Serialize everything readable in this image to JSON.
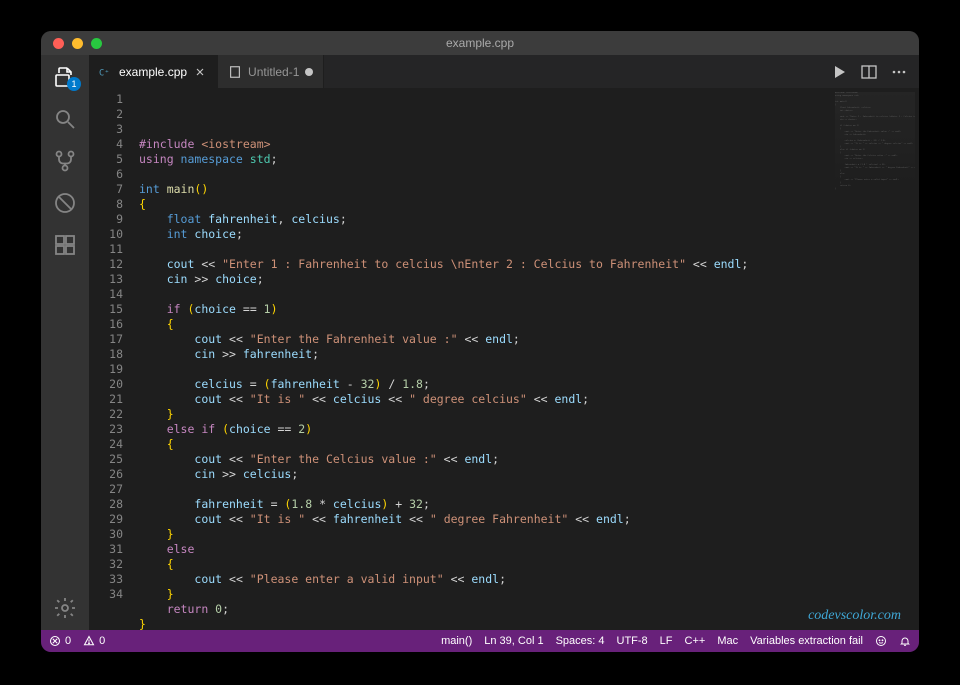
{
  "window": {
    "title": "example.cpp"
  },
  "traffic": {
    "close": "#ff5f57",
    "min": "#febc2e",
    "max": "#28c840"
  },
  "activity": {
    "badge": "1",
    "items": [
      "explorer",
      "search",
      "scm",
      "debug",
      "extensions"
    ]
  },
  "tabs": [
    {
      "label": "example.cpp",
      "lang": "cpp",
      "active": true,
      "dirty": false
    },
    {
      "label": "Untitled-1",
      "lang": "text",
      "active": false,
      "dirty": true
    }
  ],
  "editor_actions": [
    "run",
    "split",
    "more"
  ],
  "statusbar": {
    "errors": "0",
    "warnings": "0",
    "func": "main()",
    "cursor": "Ln 39, Col 1",
    "spaces": "Spaces: 4",
    "encoding": "UTF-8",
    "eol": "LF",
    "lang": "C++",
    "os": "Mac",
    "misc": "Variables extraction fail"
  },
  "watermark": "codevscolor.com",
  "syntax_colors": {
    "keyword": "#c586c0",
    "type": "#569cd6",
    "function": "#dcdcaa",
    "string": "#ce9178",
    "number": "#b5cea8",
    "bracket": "#ffd602",
    "namespace": "#4ec9b0",
    "variable": "#9cdcfe",
    "default": "#d4d4d4",
    "gutter": "#858585",
    "background": "#1e1e1e"
  },
  "code": {
    "line_count": 34,
    "lines": [
      [
        [
          "kw",
          "#include "
        ],
        [
          "str",
          "<iostream>"
        ]
      ],
      [
        [
          "kw",
          "using "
        ],
        [
          "type",
          "namespace "
        ],
        [
          "ns",
          "std"
        ],
        [
          "op",
          ";"
        ]
      ],
      [],
      [
        [
          "type",
          "int "
        ],
        [
          "func",
          "main"
        ],
        [
          "punc",
          "()"
        ]
      ],
      [
        [
          "punc",
          "{"
        ]
      ],
      [
        [
          "op",
          "    "
        ],
        [
          "type",
          "float "
        ],
        [
          "var",
          "fahrenheit"
        ],
        [
          "op",
          ", "
        ],
        [
          "var",
          "celcius"
        ],
        [
          "op",
          ";"
        ]
      ],
      [
        [
          "op",
          "    "
        ],
        [
          "type",
          "int "
        ],
        [
          "var",
          "choice"
        ],
        [
          "op",
          ";"
        ]
      ],
      [],
      [
        [
          "op",
          "    "
        ],
        [
          "var",
          "cout"
        ],
        [
          "op",
          " << "
        ],
        [
          "str",
          "\"Enter 1 : Fahrenheit to celcius \\nEnter 2 : Celcius to Fahrenheit\""
        ],
        [
          "op",
          " << "
        ],
        [
          "var",
          "endl"
        ],
        [
          "op",
          ";"
        ]
      ],
      [
        [
          "op",
          "    "
        ],
        [
          "var",
          "cin"
        ],
        [
          "op",
          " >> "
        ],
        [
          "var",
          "choice"
        ],
        [
          "op",
          ";"
        ]
      ],
      [],
      [
        [
          "op",
          "    "
        ],
        [
          "kw",
          "if "
        ],
        [
          "punc",
          "("
        ],
        [
          "var",
          "choice"
        ],
        [
          "op",
          " == "
        ],
        [
          "num",
          "1"
        ],
        [
          "punc",
          ")"
        ]
      ],
      [
        [
          "op",
          "    "
        ],
        [
          "punc",
          "{"
        ]
      ],
      [
        [
          "op",
          "        "
        ],
        [
          "var",
          "cout"
        ],
        [
          "op",
          " << "
        ],
        [
          "str",
          "\"Enter the Fahrenheit value :\""
        ],
        [
          "op",
          " << "
        ],
        [
          "var",
          "endl"
        ],
        [
          "op",
          ";"
        ]
      ],
      [
        [
          "op",
          "        "
        ],
        [
          "var",
          "cin"
        ],
        [
          "op",
          " >> "
        ],
        [
          "var",
          "fahrenheit"
        ],
        [
          "op",
          ";"
        ]
      ],
      [],
      [
        [
          "op",
          "        "
        ],
        [
          "var",
          "celcius"
        ],
        [
          "op",
          " = "
        ],
        [
          "punc",
          "("
        ],
        [
          "var",
          "fahrenheit"
        ],
        [
          "op",
          " - "
        ],
        [
          "num",
          "32"
        ],
        [
          "punc",
          ")"
        ],
        [
          "op",
          " / "
        ],
        [
          "num",
          "1.8"
        ],
        [
          "op",
          ";"
        ]
      ],
      [
        [
          "op",
          "        "
        ],
        [
          "var",
          "cout"
        ],
        [
          "op",
          " << "
        ],
        [
          "str",
          "\"It is \""
        ],
        [
          "op",
          " << "
        ],
        [
          "var",
          "celcius"
        ],
        [
          "op",
          " << "
        ],
        [
          "str",
          "\" degree celcius\""
        ],
        [
          "op",
          " << "
        ],
        [
          "var",
          "endl"
        ],
        [
          "op",
          ";"
        ]
      ],
      [
        [
          "op",
          "    "
        ],
        [
          "punc",
          "}"
        ]
      ],
      [
        [
          "op",
          "    "
        ],
        [
          "kw",
          "else if "
        ],
        [
          "punc",
          "("
        ],
        [
          "var",
          "choice"
        ],
        [
          "op",
          " == "
        ],
        [
          "num",
          "2"
        ],
        [
          "punc",
          ")"
        ]
      ],
      [
        [
          "op",
          "    "
        ],
        [
          "punc",
          "{"
        ]
      ],
      [
        [
          "op",
          "        "
        ],
        [
          "var",
          "cout"
        ],
        [
          "op",
          " << "
        ],
        [
          "str",
          "\"Enter the Celcius value :\""
        ],
        [
          "op",
          " << "
        ],
        [
          "var",
          "endl"
        ],
        [
          "op",
          ";"
        ]
      ],
      [
        [
          "op",
          "        "
        ],
        [
          "var",
          "cin"
        ],
        [
          "op",
          " >> "
        ],
        [
          "var",
          "celcius"
        ],
        [
          "op",
          ";"
        ]
      ],
      [],
      [
        [
          "op",
          "        "
        ],
        [
          "var",
          "fahrenheit"
        ],
        [
          "op",
          " = "
        ],
        [
          "punc",
          "("
        ],
        [
          "num",
          "1.8"
        ],
        [
          "op",
          " * "
        ],
        [
          "var",
          "celcius"
        ],
        [
          "punc",
          ")"
        ],
        [
          "op",
          " + "
        ],
        [
          "num",
          "32"
        ],
        [
          "op",
          ";"
        ]
      ],
      [
        [
          "op",
          "        "
        ],
        [
          "var",
          "cout"
        ],
        [
          "op",
          " << "
        ],
        [
          "str",
          "\"It is \""
        ],
        [
          "op",
          " << "
        ],
        [
          "var",
          "fahrenheit"
        ],
        [
          "op",
          " << "
        ],
        [
          "str",
          "\" degree Fahrenheit\""
        ],
        [
          "op",
          " << "
        ],
        [
          "var",
          "endl"
        ],
        [
          "op",
          ";"
        ]
      ],
      [
        [
          "op",
          "    "
        ],
        [
          "punc",
          "}"
        ]
      ],
      [
        [
          "op",
          "    "
        ],
        [
          "kw",
          "else"
        ]
      ],
      [
        [
          "op",
          "    "
        ],
        [
          "punc",
          "{"
        ]
      ],
      [
        [
          "op",
          "        "
        ],
        [
          "var",
          "cout"
        ],
        [
          "op",
          " << "
        ],
        [
          "str",
          "\"Please enter a valid input\""
        ],
        [
          "op",
          " << "
        ],
        [
          "var",
          "endl"
        ],
        [
          "op",
          ";"
        ]
      ],
      [
        [
          "op",
          "    "
        ],
        [
          "punc",
          "}"
        ]
      ],
      [
        [
          "op",
          "    "
        ],
        [
          "kw",
          "return "
        ],
        [
          "num",
          "0"
        ],
        [
          "op",
          ";"
        ]
      ],
      [
        [
          "punc",
          "}"
        ]
      ],
      []
    ]
  }
}
